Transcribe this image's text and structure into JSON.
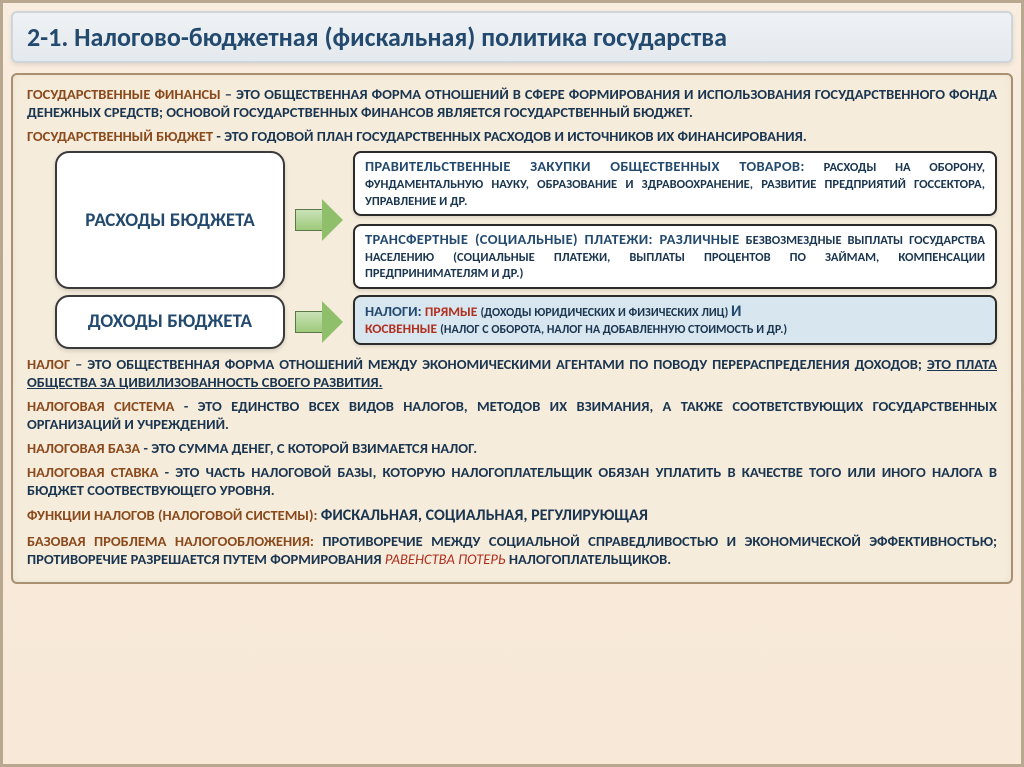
{
  "title": "2-1. Налогово-бюджетная (фискальная) политика государства",
  "colors": {
    "page_bg_top": "#f9ede0",
    "page_bg_bottom": "#f7e8d7",
    "page_border": "#b8a890",
    "title_bg_top": "#eef2f5",
    "title_bg_bottom": "#e4e9ed",
    "title_border": "#cfd5db",
    "title_text": "#234a6e",
    "main_bg": "#f6ecdc",
    "main_border": "#a89070",
    "term_color": "#8a4a1c",
    "body_color": "#1a3550",
    "highlight_red": "#b03020",
    "box_white": "#ffffff",
    "box_blue": "#d8e6ef",
    "box_border": "#2b2b2b",
    "arrow_fill_top": "#c9e2b8",
    "arrow_fill_bottom": "#9ec97a",
    "arrow_border": "#5a7848",
    "label_text": "#234a6e"
  },
  "fonts": {
    "title": 26,
    "def": 14.5,
    "label": 19,
    "box_lead": 14.5,
    "box_small": 12.5
  },
  "defs": {
    "gf": {
      "term": "ГОСУДАРСТВЕННЫЕ ФИНАНСЫ",
      "body": " – ЭТО ОБЩЕСТВЕННАЯ ФОРМА ОТНОШЕНИЙ В СФЕРЕ ФОРМИРОВАНИЯ И ИСПОЛЬЗОВАНИЯ ГОСУДАРСТВЕННОГО ФОНДА ДЕНЕЖНЫХ СРЕДСТВ; ОСНОВОЙ ГОСУДАРСТВЕННЫХ ФИНАНСОВ ЯВЛЯЕТСЯ ГОСУДАРСТВЕННЫЙ БЮДЖЕТ."
    },
    "gb": {
      "term": "ГОСУДАРСТВЕННЫЙ БЮДЖЕТ",
      "body": " - ЭТО ГОДОВОЙ ПЛАН ГОСУДАРСТВЕННЫХ РАСХОДОВ И ИСТОЧНИКОВ ИХ ФИНАНСИРОВАНИЯ."
    },
    "nalog": {
      "term": "НАЛОГ",
      "body_a": " – ЭТО ОБЩЕСТВЕННАЯ ФОРМА ОТНОШЕНИЙ МЕЖДУ ЭКОНОМИЧЕСКИМИ АГЕНТАМИ ПО ПОВОДУ ПЕРЕРАСПРЕДЕЛЕНИЯ ДОХОДОВ; ",
      "body_u": "ЭТО ПЛАТА ОБЩЕСТВА ЗА ЦИВИЛИЗОВАННОСТЬ СВОЕГО РАЗВИТИЯ."
    },
    "ns": {
      "term": "НАЛОГОВАЯ СИСТЕМА",
      "body": " - ЭТО ЕДИНСТВО ВСЕХ ВИДОВ НАЛОГОВ, МЕТОДОВ ИХ ВЗИМАНИЯ, А ТАКЖЕ СООТВЕТСТВУЮЩИХ ГОСУДАРСТВЕННЫХ ОРГАНИЗАЦИЙ И УЧРЕЖДЕНИЙ."
    },
    "nb": {
      "term": "НАЛОГОВАЯ БАЗА",
      "body": " - ЭТО СУММА ДЕНЕГ, С КОТОРОЙ ВЗИМАЕТСЯ НАЛОГ."
    },
    "nst": {
      "term": "НАЛОГОВАЯ СТАВКА",
      "body": " - ЭТО ЧАСТЬ НАЛОГОВОЙ БАЗЫ, КОТОРУЮ НАЛОГОПЛАТЕЛЬЩИК ОБЯЗАН УПЛАТИТЬ В КАЧЕСТВЕ ТОГО ИЛИ ИНОГО НАЛОГА В БЮДЖЕТ СООТВЕСТВУЮЩЕГО УРОВНЯ."
    },
    "fn": {
      "term": "ФУНКЦИИ НАЛОГОВ (НАЛОГОВОЙ СИСТЕМЫ): ",
      "body": "ФИСКАЛЬНАЯ, СОЦИАЛЬНАЯ, РЕГУЛИРУЮЩАЯ"
    },
    "bp": {
      "term": "БАЗОВАЯ ПРОБЛЕМА НАЛОГООБЛОЖЕНИЯ:",
      "body_a": " ПРОТИВОРЕЧИЕ МЕЖДУ СОЦИАЛЬНОЙ СПРАВЕДЛИВОСТЬЮ И ЭКОНОМИЧЕСКОЙ ЭФФЕКТИВНОСТЬЮ; ПРОТИВОРЕЧИЕ РАЗРЕШАЕТСЯ ПУТЕМ ФОРМИРОВАНИЯ ",
      "hl": "РАВЕНСТВА ПОТЕРЬ",
      "body_b": " НАЛОГОПЛАТЕЛЬЩИКОВ."
    }
  },
  "flow": {
    "expenses": {
      "label": "РАСХОДЫ БЮДЖЕТА",
      "boxes": [
        {
          "lead": "ПРАВИТЕЛЬСТВЕННЫЕ ЗАКУПКИ ОБЩЕСТВЕННЫХ ТОВАРОВ:",
          "rest": " РАСХОДЫ НА ОБОРОНУ, ФУНДАМЕНТАЛЬНУЮ НАУКУ, ОБРАЗОВАНИЕ И ЗДРАВООХРАНЕНИЕ, РАЗВИТИЕ ПРЕДПРИЯТИЙ ГОССЕКТОРА, УПРАВЛЕНИЕ И ДР.",
          "bg": "white"
        },
        {
          "lead": "ТРАНСФЕРТНЫЕ (СОЦИАЛЬНЫЕ) ПЛАТЕЖИ: РАЗЛИЧНЫЕ",
          "rest": " БЕЗВОЗМЕЗДНЫЕ ВЫПЛАТЫ ГОСУДАРСТВА НАСЕЛЕНИЮ (СОЦИАЛЬНЫЕ ПЛАТЕЖИ, ВЫПЛАТЫ ПРОЦЕНТОВ ПО ЗАЙМАМ, КОМПЕНСАЦИИ ПРЕДПРИНИМАТЕЛЯМ И ДР.)",
          "bg": "white"
        }
      ]
    },
    "income": {
      "label": "ДОХОДЫ БЮДЖЕТА",
      "tax_box": {
        "t1": "НАЛОГИ: ",
        "t2": "ПРЯМЫЕ ",
        "t3": "(ДОХОДЫ ЮРИДИЧЕСКИХ И ФИЗИЧЕСКИХ ЛИЦ) ",
        "t4": "И",
        "t5": "КОСВЕННЫЕ ",
        "t6": "(НАЛОГ С ОБОРОТА, НАЛОГ НА ДОБАВЛЕННУЮ СТОИМОСТЬ И ДР.)",
        "bg": "blue"
      }
    }
  }
}
